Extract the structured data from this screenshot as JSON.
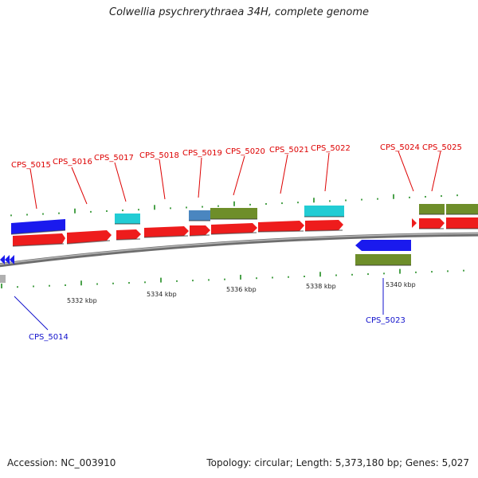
{
  "title": "Colwellia psychrerythraea 34H, complete genome",
  "footer": {
    "accession": "Accession: NC_003910",
    "stats": "Topology: circular; Length: 5,373,180 bp; Genes: 5,027"
  },
  "axis_ticks": [
    "5332 kbp",
    "5334 kbp",
    "5336 kbp",
    "5338 kbp",
    "5340 kbp"
  ],
  "colors": {
    "gene_forward": "#ee1c1c",
    "gene_reverse_blue": "#1a1aee",
    "gene_cyan": "#22ccd4",
    "gene_olive": "#6e8e2a",
    "gene_steel": "#4a86c0",
    "label_forward": "#dd0000",
    "label_reverse": "#1111cc",
    "backbone": "#8a8a8a",
    "tick": "#1e8a1e"
  },
  "gene_labels": [
    {
      "id": "cps5015",
      "text": "CPS_5015",
      "strand": "forward"
    },
    {
      "id": "cps5016",
      "text": "CPS_5016",
      "strand": "forward"
    },
    {
      "id": "cps5017",
      "text": "CPS_5017",
      "strand": "forward"
    },
    {
      "id": "cps5018",
      "text": "CPS_5018",
      "strand": "forward"
    },
    {
      "id": "cps5019",
      "text": "CPS_5019",
      "strand": "forward"
    },
    {
      "id": "cps5020",
      "text": "CPS_5020",
      "strand": "forward"
    },
    {
      "id": "cps5021",
      "text": "CPS_5021",
      "strand": "forward"
    },
    {
      "id": "cps5022",
      "text": "CPS_5022",
      "strand": "forward"
    },
    {
      "id": "cps5024",
      "text": "CPS_5024",
      "strand": "forward"
    },
    {
      "id": "cps5025",
      "text": "CPS_5025",
      "strand": "forward"
    },
    {
      "id": "cps5014",
      "text": "CPS_5014",
      "strand": "reverse"
    },
    {
      "id": "cps5023",
      "text": "CPS_5023",
      "strand": "reverse"
    }
  ]
}
